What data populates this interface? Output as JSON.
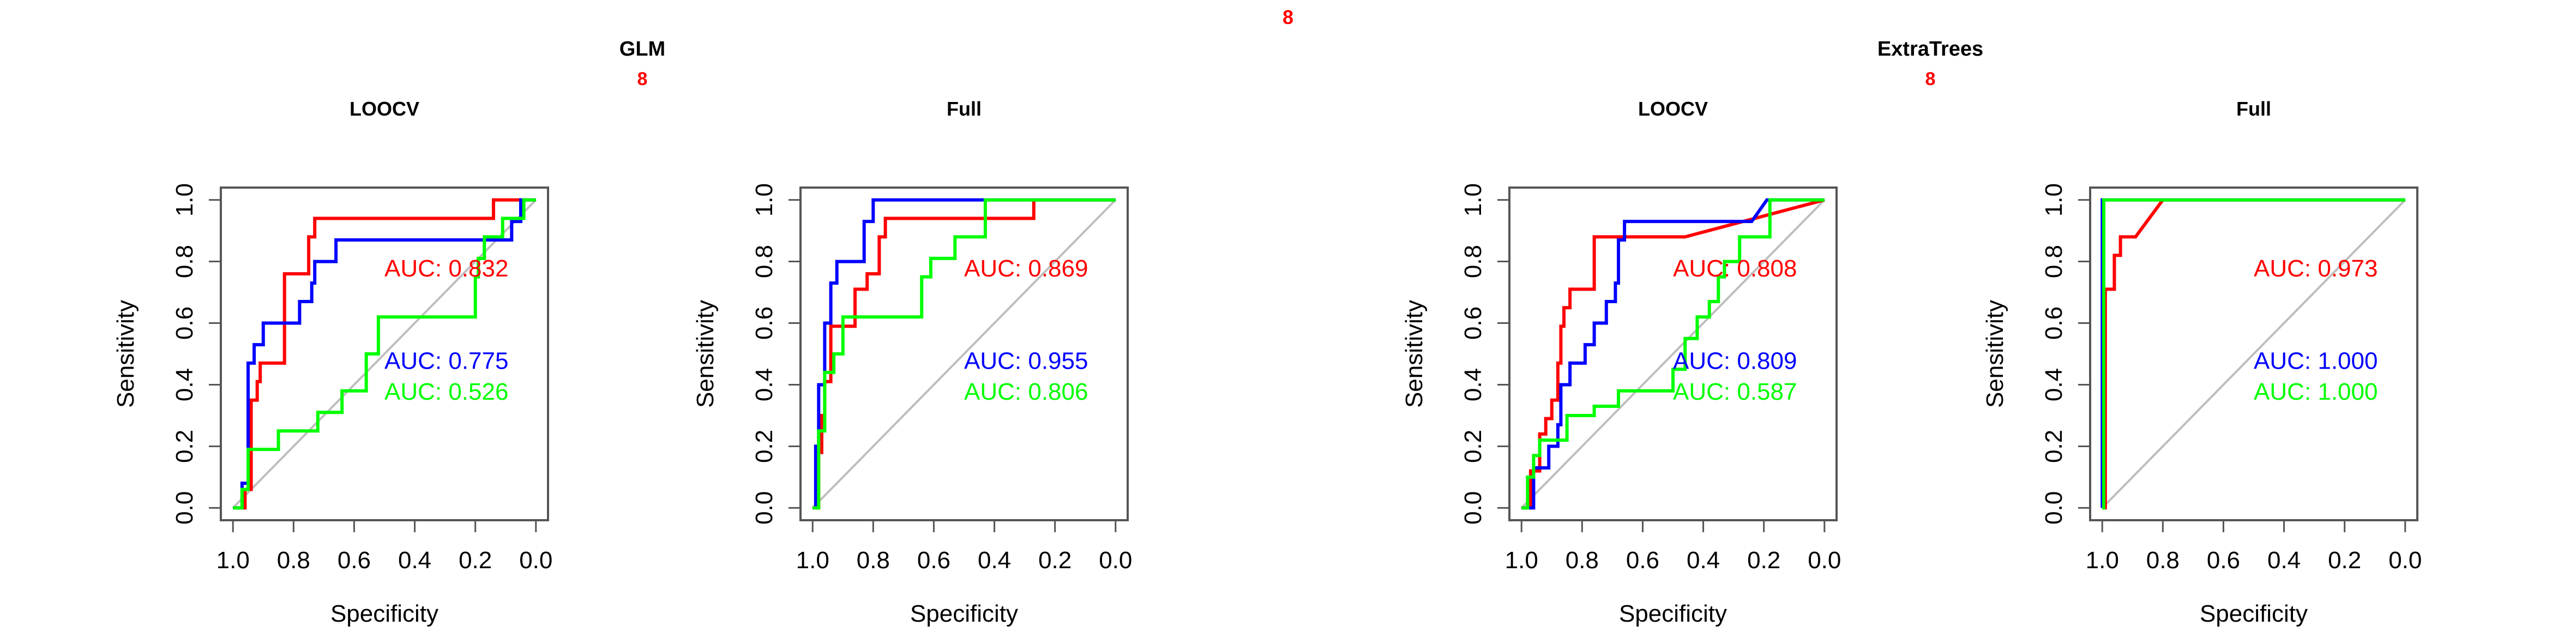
{
  "page": {
    "top_label": "8",
    "label_color": "#ff0000"
  },
  "groups": [
    {
      "title": "GLM",
      "sublabel": "8"
    },
    {
      "title": "ExtraTrees",
      "sublabel": "8"
    }
  ],
  "colors": {
    "red": "#ff0000",
    "blue": "#0000ff",
    "green": "#00ff00",
    "diagonal": "#bebebe",
    "axis": "#555555"
  },
  "chart_data": [
    {
      "type": "line",
      "group": "GLM",
      "title": "LOOCV",
      "xlabel": "Specificity",
      "ylabel": "Sensitivity",
      "xlim": [
        1.0,
        0.0
      ],
      "ylim": [
        0.0,
        1.0
      ],
      "xticks": [
        "1.0",
        "0.8",
        "0.6",
        "0.4",
        "0.2",
        "0.0"
      ],
      "yticks": [
        "0.0",
        "0.2",
        "0.4",
        "0.6",
        "0.8",
        "1.0"
      ],
      "series": [
        {
          "color": "#ff0000",
          "auc_label": "AUC: 0.832",
          "points": [
            [
              1.0,
              0.0
            ],
            [
              0.96,
              0.0
            ],
            [
              0.96,
              0.06
            ],
            [
              0.94,
              0.06
            ],
            [
              0.94,
              0.35
            ],
            [
              0.92,
              0.35
            ],
            [
              0.92,
              0.41
            ],
            [
              0.91,
              0.41
            ],
            [
              0.91,
              0.47
            ],
            [
              0.83,
              0.47
            ],
            [
              0.83,
              0.76
            ],
            [
              0.75,
              0.76
            ],
            [
              0.75,
              0.88
            ],
            [
              0.73,
              0.88
            ],
            [
              0.73,
              0.94
            ],
            [
              0.14,
              0.94
            ],
            [
              0.14,
              1.0
            ],
            [
              0.0,
              1.0
            ]
          ]
        },
        {
          "color": "#0000ff",
          "auc_label": "AUC: 0.775",
          "points": [
            [
              1.0,
              0.0
            ],
            [
              0.97,
              0.0
            ],
            [
              0.97,
              0.08
            ],
            [
              0.95,
              0.08
            ],
            [
              0.95,
              0.47
            ],
            [
              0.93,
              0.47
            ],
            [
              0.93,
              0.53
            ],
            [
              0.9,
              0.53
            ],
            [
              0.9,
              0.6
            ],
            [
              0.78,
              0.6
            ],
            [
              0.78,
              0.67
            ],
            [
              0.74,
              0.67
            ],
            [
              0.74,
              0.73
            ],
            [
              0.73,
              0.73
            ],
            [
              0.73,
              0.8
            ],
            [
              0.66,
              0.8
            ],
            [
              0.66,
              0.87
            ],
            [
              0.08,
              0.87
            ],
            [
              0.08,
              0.93
            ],
            [
              0.05,
              0.93
            ],
            [
              0.05,
              1.0
            ],
            [
              0.0,
              1.0
            ]
          ]
        },
        {
          "color": "#00ff00",
          "auc_label": "AUC: 0.526",
          "points": [
            [
              1.0,
              0.0
            ],
            [
              0.97,
              0.0
            ],
            [
              0.97,
              0.06
            ],
            [
              0.95,
              0.06
            ],
            [
              0.95,
              0.19
            ],
            [
              0.85,
              0.19
            ],
            [
              0.85,
              0.25
            ],
            [
              0.72,
              0.25
            ],
            [
              0.72,
              0.31
            ],
            [
              0.64,
              0.31
            ],
            [
              0.64,
              0.38
            ],
            [
              0.56,
              0.38
            ],
            [
              0.56,
              0.5
            ],
            [
              0.52,
              0.5
            ],
            [
              0.52,
              0.62
            ],
            [
              0.2,
              0.62
            ],
            [
              0.2,
              0.75
            ],
            [
              0.19,
              0.75
            ],
            [
              0.19,
              0.81
            ],
            [
              0.17,
              0.81
            ],
            [
              0.17,
              0.88
            ],
            [
              0.11,
              0.88
            ],
            [
              0.11,
              0.94
            ],
            [
              0.04,
              0.94
            ],
            [
              0.04,
              1.0
            ],
            [
              0.0,
              1.0
            ]
          ]
        }
      ]
    },
    {
      "type": "line",
      "group": "GLM",
      "title": "Full",
      "xlabel": "Specificity",
      "ylabel": "Sensitivity",
      "xlim": [
        1.0,
        0.0
      ],
      "ylim": [
        0.0,
        1.0
      ],
      "xticks": [
        "1.0",
        "0.8",
        "0.6",
        "0.4",
        "0.2",
        "0.0"
      ],
      "yticks": [
        "0.0",
        "0.2",
        "0.4",
        "0.6",
        "0.8",
        "1.0"
      ],
      "series": [
        {
          "color": "#ff0000",
          "auc_label": "AUC: 0.869",
          "points": [
            [
              1.0,
              0.0
            ],
            [
              0.98,
              0.0
            ],
            [
              0.98,
              0.18
            ],
            [
              0.97,
              0.18
            ],
            [
              0.97,
              0.3
            ],
            [
              0.96,
              0.3
            ],
            [
              0.96,
              0.41
            ],
            [
              0.94,
              0.41
            ],
            [
              0.94,
              0.59
            ],
            [
              0.86,
              0.59
            ],
            [
              0.86,
              0.71
            ],
            [
              0.82,
              0.71
            ],
            [
              0.82,
              0.76
            ],
            [
              0.78,
              0.76
            ],
            [
              0.78,
              0.88
            ],
            [
              0.76,
              0.88
            ],
            [
              0.76,
              0.94
            ],
            [
              0.27,
              0.94
            ],
            [
              0.27,
              1.0
            ],
            [
              0.0,
              1.0
            ]
          ]
        },
        {
          "color": "#0000ff",
          "auc_label": "AUC: 0.955",
          "points": [
            [
              1.0,
              0.0
            ],
            [
              0.99,
              0.0
            ],
            [
              0.99,
              0.2
            ],
            [
              0.98,
              0.2
            ],
            [
              0.98,
              0.4
            ],
            [
              0.96,
              0.4
            ],
            [
              0.96,
              0.6
            ],
            [
              0.94,
              0.6
            ],
            [
              0.94,
              0.73
            ],
            [
              0.92,
              0.73
            ],
            [
              0.92,
              0.8
            ],
            [
              0.83,
              0.8
            ],
            [
              0.83,
              0.93
            ],
            [
              0.8,
              0.93
            ],
            [
              0.8,
              1.0
            ],
            [
              0.0,
              1.0
            ]
          ]
        },
        {
          "color": "#00ff00",
          "auc_label": "AUC: 0.806",
          "points": [
            [
              1.0,
              0.0
            ],
            [
              0.98,
              0.0
            ],
            [
              0.98,
              0.25
            ],
            [
              0.96,
              0.25
            ],
            [
              0.96,
              0.44
            ],
            [
              0.93,
              0.44
            ],
            [
              0.93,
              0.5
            ],
            [
              0.9,
              0.5
            ],
            [
              0.9,
              0.62
            ],
            [
              0.64,
              0.62
            ],
            [
              0.64,
              0.75
            ],
            [
              0.61,
              0.75
            ],
            [
              0.61,
              0.81
            ],
            [
              0.53,
              0.81
            ],
            [
              0.53,
              0.88
            ],
            [
              0.43,
              0.88
            ],
            [
              0.43,
              1.0
            ],
            [
              0.0,
              1.0
            ]
          ]
        }
      ]
    },
    {
      "type": "line",
      "group": "ExtraTrees",
      "title": "LOOCV",
      "xlabel": "Specificity",
      "ylabel": "Sensitivity",
      "xlim": [
        1.0,
        0.0
      ],
      "ylim": [
        0.0,
        1.0
      ],
      "xticks": [
        "1.0",
        "0.8",
        "0.6",
        "0.4",
        "0.2",
        "0.0"
      ],
      "yticks": [
        "0.0",
        "0.2",
        "0.4",
        "0.6",
        "0.8",
        "1.0"
      ],
      "series": [
        {
          "color": "#ff0000",
          "auc_label": "AUC: 0.808",
          "points": [
            [
              1.0,
              0.0
            ],
            [
              0.97,
              0.0
            ],
            [
              0.97,
              0.12
            ],
            [
              0.94,
              0.12
            ],
            [
              0.94,
              0.24
            ],
            [
              0.92,
              0.24
            ],
            [
              0.92,
              0.29
            ],
            [
              0.9,
              0.29
            ],
            [
              0.9,
              0.35
            ],
            [
              0.88,
              0.35
            ],
            [
              0.88,
              0.47
            ],
            [
              0.87,
              0.47
            ],
            [
              0.87,
              0.59
            ],
            [
              0.86,
              0.59
            ],
            [
              0.86,
              0.65
            ],
            [
              0.84,
              0.65
            ],
            [
              0.84,
              0.71
            ],
            [
              0.76,
              0.71
            ],
            [
              0.76,
              0.88
            ],
            [
              0.46,
              0.88
            ],
            [
              0.0,
              1.0
            ]
          ]
        },
        {
          "color": "#0000ff",
          "auc_label": "AUC: 0.809",
          "points": [
            [
              1.0,
              0.0
            ],
            [
              0.96,
              0.0
            ],
            [
              0.96,
              0.13
            ],
            [
              0.91,
              0.13
            ],
            [
              0.91,
              0.2
            ],
            [
              0.88,
              0.2
            ],
            [
              0.88,
              0.27
            ],
            [
              0.87,
              0.27
            ],
            [
              0.87,
              0.4
            ],
            [
              0.84,
              0.4
            ],
            [
              0.84,
              0.47
            ],
            [
              0.79,
              0.47
            ],
            [
              0.79,
              0.53
            ],
            [
              0.76,
              0.53
            ],
            [
              0.76,
              0.6
            ],
            [
              0.72,
              0.6
            ],
            [
              0.72,
              0.67
            ],
            [
              0.69,
              0.67
            ],
            [
              0.69,
              0.73
            ],
            [
              0.68,
              0.73
            ],
            [
              0.68,
              0.87
            ],
            [
              0.66,
              0.87
            ],
            [
              0.66,
              0.93
            ],
            [
              0.24,
              0.93
            ],
            [
              0.19,
              1.0
            ],
            [
              0.0,
              1.0
            ]
          ]
        },
        {
          "color": "#00ff00",
          "auc_label": "AUC: 0.587",
          "points": [
            [
              1.0,
              0.0
            ],
            [
              0.98,
              0.0
            ],
            [
              0.98,
              0.1
            ],
            [
              0.96,
              0.1
            ],
            [
              0.96,
              0.17
            ],
            [
              0.94,
              0.17
            ],
            [
              0.94,
              0.22
            ],
            [
              0.85,
              0.22
            ],
            [
              0.85,
              0.3
            ],
            [
              0.76,
              0.3
            ],
            [
              0.76,
              0.33
            ],
            [
              0.68,
              0.33
            ],
            [
              0.68,
              0.38
            ],
            [
              0.5,
              0.38
            ],
            [
              0.5,
              0.45
            ],
            [
              0.46,
              0.45
            ],
            [
              0.46,
              0.55
            ],
            [
              0.42,
              0.55
            ],
            [
              0.42,
              0.62
            ],
            [
              0.38,
              0.62
            ],
            [
              0.38,
              0.67
            ],
            [
              0.35,
              0.67
            ],
            [
              0.35,
              0.75
            ],
            [
              0.33,
              0.75
            ],
            [
              0.33,
              0.8
            ],
            [
              0.28,
              0.8
            ],
            [
              0.28,
              0.88
            ],
            [
              0.18,
              0.88
            ],
            [
              0.18,
              1.0
            ],
            [
              0.0,
              1.0
            ]
          ]
        }
      ]
    },
    {
      "type": "line",
      "group": "ExtraTrees",
      "title": "Full",
      "xlabel": "Specificity",
      "ylabel": "Sensitivity",
      "xlim": [
        1.0,
        0.0
      ],
      "ylim": [
        0.0,
        1.0
      ],
      "xticks": [
        "1.0",
        "0.8",
        "0.6",
        "0.4",
        "0.2",
        "0.0"
      ],
      "yticks": [
        "0.0",
        "0.2",
        "0.4",
        "0.6",
        "0.8",
        "1.0"
      ],
      "series": [
        {
          "color": "#ff0000",
          "auc_label": "AUC: 0.973",
          "points": [
            [
              1.0,
              0.0
            ],
            [
              0.99,
              0.0
            ],
            [
              0.99,
              0.71
            ],
            [
              0.96,
              0.71
            ],
            [
              0.96,
              0.82
            ],
            [
              0.94,
              0.82
            ],
            [
              0.94,
              0.88
            ],
            [
              0.89,
              0.88
            ],
            [
              0.8,
              1.0
            ],
            [
              0.0,
              1.0
            ]
          ]
        },
        {
          "color": "#0000ff",
          "auc_label": "AUC: 1.000",
          "points": [
            [
              1.0,
              0.0
            ],
            [
              1.0,
              1.0
            ],
            [
              0.0,
              1.0
            ]
          ]
        },
        {
          "color": "#00ff00",
          "auc_label": "AUC: 1.000",
          "points": [
            [
              1.0,
              0.0
            ],
            [
              0.995,
              0.0
            ],
            [
              0.995,
              1.0
            ],
            [
              0.0,
              1.0
            ]
          ]
        }
      ]
    }
  ]
}
